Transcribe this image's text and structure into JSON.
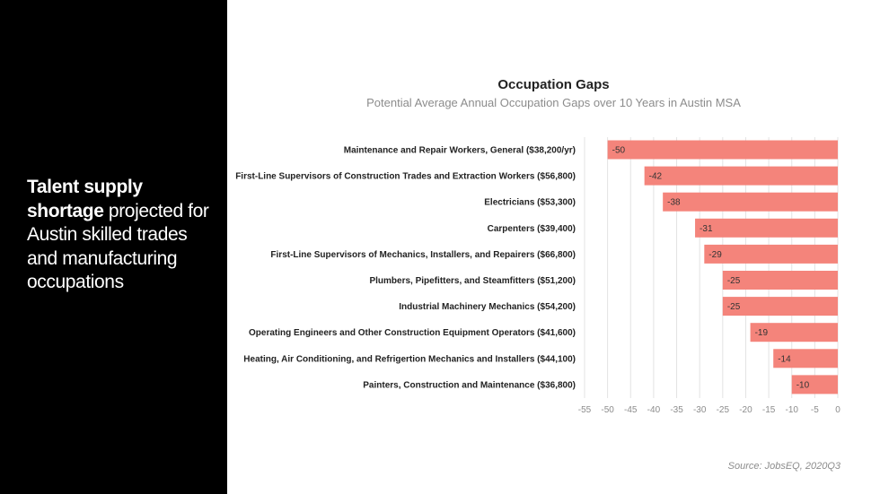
{
  "headline": {
    "strong": "Talent supply shortage",
    "rest": " projected for Austin skilled trades and manufacturing occupations"
  },
  "chart_data": {
    "type": "bar",
    "orientation": "horizontal",
    "title": "Occupation Gaps",
    "subtitle": "Potential Average Annual Occupation Gaps over 10 Years in Austin MSA",
    "categories": [
      "Maintenance and Repair Workers, General ($38,200/yr)",
      "First-Line Supervisors of Construction Trades and Extraction Workers ($56,800)",
      "Electricians ($53,300)",
      "Carpenters ($39,400)",
      "First-Line Supervisors of Mechanics, Installers, and Repairers ($66,800)",
      "Plumbers, Pipefitters, and Steamfitters ($51,200)",
      "Industrial Machinery Mechanics ($54,200)",
      "Operating Engineers and Other Construction Equipment Operators ($41,600)",
      "Heating, Air Conditioning, and Refrigertion Mechanics and Installers ($44,100)",
      "Painters, Construction and Maintenance ($36,800)"
    ],
    "values": [
      -50,
      -42,
      -38,
      -31,
      -29,
      -25,
      -25,
      -19,
      -14,
      -10
    ],
    "xlim": [
      -55,
      0
    ],
    "xticks": [
      -55,
      -50,
      -45,
      -40,
      -35,
      -30,
      -25,
      -20,
      -15,
      -10,
      -5,
      0
    ],
    "grid": "vertical",
    "bar_color": "#f4847b",
    "source": "Source: JobsEQ, 2020Q3"
  }
}
